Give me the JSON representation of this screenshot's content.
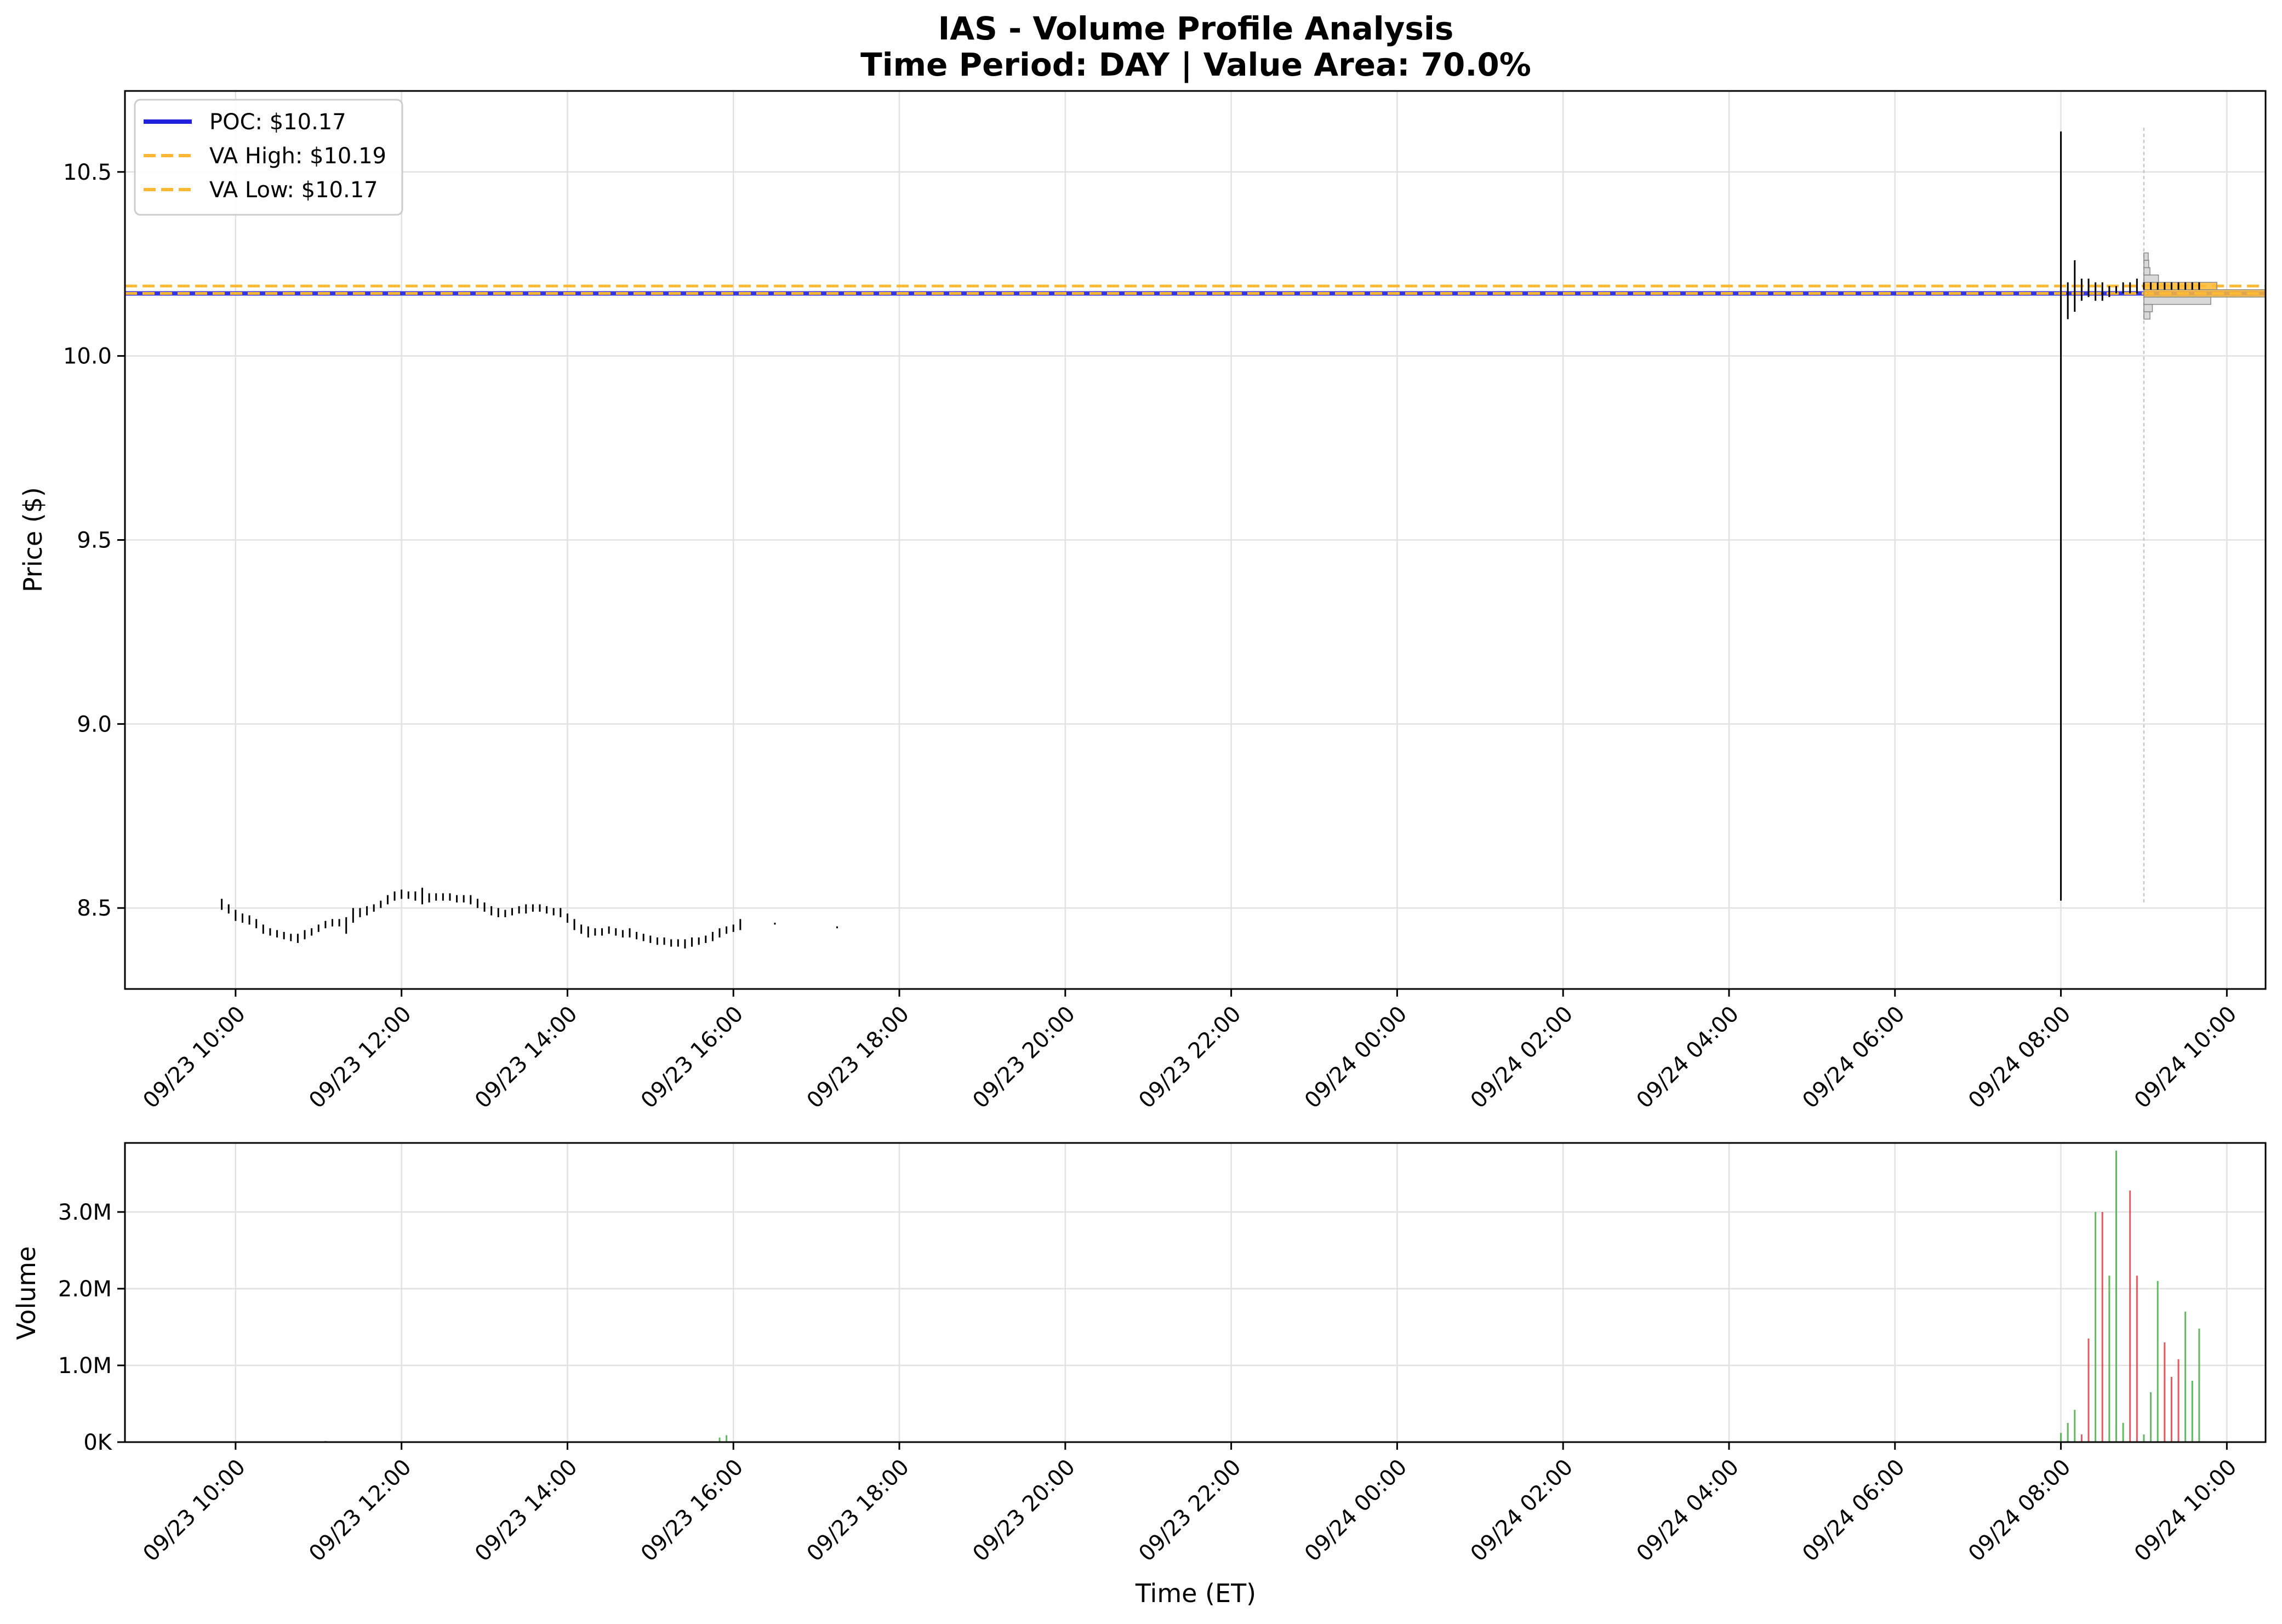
{
  "chart_data": [
    {
      "type": "candlestick",
      "title": "IAS - Volume Profile Analysis",
      "subtitle": "Time Period: DAY | Value Area: 70.0%",
      "xlabel": "",
      "ylabel": "Price ($)",
      "ylim": [
        8.28,
        10.72
      ],
      "yticks": [
        8.5,
        9.0,
        9.5,
        10.0,
        10.5
      ],
      "ytick_labels": [
        "8.5",
        "9.0",
        "9.5",
        "10.0",
        "10.5"
      ],
      "xlim": [
        "09/23 08:40",
        "09/24 10:28"
      ],
      "xticks": [
        "09/23 10:00",
        "09/23 12:00",
        "09/23 14:00",
        "09/23 16:00",
        "09/23 18:00",
        "09/23 20:00",
        "09/23 22:00",
        "09/24 00:00",
        "09/24 02:00",
        "09/24 04:00",
        "09/24 06:00",
        "09/24 08:00",
        "09/24 10:00"
      ],
      "xtick_labels": [
        "09/23 10:00",
        "09/23 12:00",
        "09/23 14:00",
        "09/23 16:00",
        "09/23 18:00",
        "09/23 20:00",
        "09/23 22:00",
        "09/24 00:00",
        "09/24 02:00",
        "09/24 04:00",
        "09/24 06:00",
        "09/24 08:00",
        "09/24 10:00"
      ],
      "grid": true,
      "legend": {
        "position": "top-left",
        "entries": [
          {
            "label": "POC: $10.17",
            "color": "#2222dd",
            "style": "solid"
          },
          {
            "label": "VA High: $10.19",
            "color": "#ffb833",
            "style": "dashed"
          },
          {
            "label": "VA Low: $10.17",
            "color": "#ffb833",
            "style": "dashed"
          }
        ]
      },
      "lines": {
        "poc": {
          "price": 10.17,
          "color": "#2222dd"
        },
        "va_high": {
          "price": 10.19,
          "color": "#ffb833"
        },
        "va_low": {
          "price": 10.17,
          "color": "#ffb833"
        }
      },
      "candles": [
        {
          "t": "09/23 09:50",
          "low": 8.495,
          "high": 8.525
        },
        {
          "t": "09/23 09:55",
          "low": 8.485,
          "high": 8.51
        },
        {
          "t": "09/23 10:00",
          "low": 8.465,
          "high": 8.495
        },
        {
          "t": "09/23 10:05",
          "low": 8.46,
          "high": 8.485
        },
        {
          "t": "09/23 10:10",
          "low": 8.455,
          "high": 8.48
        },
        {
          "t": "09/23 10:15",
          "low": 8.445,
          "high": 8.47
        },
        {
          "t": "09/23 10:20",
          "low": 8.43,
          "high": 8.455
        },
        {
          "t": "09/23 10:25",
          "low": 8.425,
          "high": 8.445
        },
        {
          "t": "09/23 10:30",
          "low": 8.42,
          "high": 8.44
        },
        {
          "t": "09/23 10:35",
          "low": 8.415,
          "high": 8.435
        },
        {
          "t": "09/23 10:40",
          "low": 8.41,
          "high": 8.43
        },
        {
          "t": "09/23 10:45",
          "low": 8.405,
          "high": 8.43
        },
        {
          "t": "09/23 10:50",
          "low": 8.415,
          "high": 8.44
        },
        {
          "t": "09/23 10:55",
          "low": 8.425,
          "high": 8.445
        },
        {
          "t": "09/23 11:00",
          "low": 8.435,
          "high": 8.455
        },
        {
          "t": "09/23 11:05",
          "low": 8.445,
          "high": 8.465
        },
        {
          "t": "09/23 11:10",
          "low": 8.45,
          "high": 8.47
        },
        {
          "t": "09/23 11:15",
          "low": 8.45,
          "high": 8.47
        },
        {
          "t": "09/23 11:20",
          "low": 8.43,
          "high": 8.475
        },
        {
          "t": "09/23 11:25",
          "low": 8.46,
          "high": 8.5
        },
        {
          "t": "09/23 11:30",
          "low": 8.475,
          "high": 8.5
        },
        {
          "t": "09/23 11:35",
          "low": 8.48,
          "high": 8.505
        },
        {
          "t": "09/23 11:40",
          "low": 8.49,
          "high": 8.51
        },
        {
          "t": "09/23 11:45",
          "low": 8.5,
          "high": 8.52
        },
        {
          "t": "09/23 11:50",
          "low": 8.51,
          "high": 8.535
        },
        {
          "t": "09/23 11:55",
          "low": 8.52,
          "high": 8.545
        },
        {
          "t": "09/23 12:00",
          "low": 8.525,
          "high": 8.55
        },
        {
          "t": "09/23 12:05",
          "low": 8.525,
          "high": 8.545
        },
        {
          "t": "09/23 12:10",
          "low": 8.52,
          "high": 8.545
        },
        {
          "t": "09/23 12:15",
          "low": 8.51,
          "high": 8.555
        },
        {
          "t": "09/23 12:20",
          "low": 8.515,
          "high": 8.54
        },
        {
          "t": "09/23 12:25",
          "low": 8.52,
          "high": 8.54
        },
        {
          "t": "09/23 12:30",
          "low": 8.52,
          "high": 8.54
        },
        {
          "t": "09/23 12:35",
          "low": 8.52,
          "high": 8.54
        },
        {
          "t": "09/23 12:40",
          "low": 8.515,
          "high": 8.535
        },
        {
          "t": "09/23 12:45",
          "low": 8.515,
          "high": 8.535
        },
        {
          "t": "09/23 12:50",
          "low": 8.51,
          "high": 8.535
        },
        {
          "t": "09/23 12:55",
          "low": 8.5,
          "high": 8.525
        },
        {
          "t": "09/23 13:00",
          "low": 8.49,
          "high": 8.515
        },
        {
          "t": "09/23 13:05",
          "low": 8.48,
          "high": 8.505
        },
        {
          "t": "09/23 13:10",
          "low": 8.475,
          "high": 8.5
        },
        {
          "t": "09/23 13:15",
          "low": 8.475,
          "high": 8.495
        },
        {
          "t": "09/23 13:20",
          "low": 8.48,
          "high": 8.5
        },
        {
          "t": "09/23 13:25",
          "low": 8.485,
          "high": 8.505
        },
        {
          "t": "09/23 13:30",
          "low": 8.485,
          "high": 8.51
        },
        {
          "t": "09/23 13:35",
          "low": 8.49,
          "high": 8.51
        },
        {
          "t": "09/23 13:40",
          "low": 8.49,
          "high": 8.51
        },
        {
          "t": "09/23 13:45",
          "low": 8.485,
          "high": 8.505
        },
        {
          "t": "09/23 13:50",
          "low": 8.48,
          "high": 8.5
        },
        {
          "t": "09/23 13:55",
          "low": 8.475,
          "high": 8.5
        },
        {
          "t": "09/23 14:00",
          "low": 8.46,
          "high": 8.485
        },
        {
          "t": "09/23 14:05",
          "low": 8.44,
          "high": 8.47
        },
        {
          "t": "09/23 14:10",
          "low": 8.43,
          "high": 8.455
        },
        {
          "t": "09/23 14:15",
          "low": 8.42,
          "high": 8.45
        },
        {
          "t": "09/23 14:20",
          "low": 8.425,
          "high": 8.445
        },
        {
          "t": "09/23 14:25",
          "low": 8.425,
          "high": 8.445
        },
        {
          "t": "09/23 14:30",
          "low": 8.43,
          "high": 8.45
        },
        {
          "t": "09/23 14:35",
          "low": 8.425,
          "high": 8.445
        },
        {
          "t": "09/23 14:40",
          "low": 8.42,
          "high": 8.44
        },
        {
          "t": "09/23 14:45",
          "low": 8.42,
          "high": 8.445
        },
        {
          "t": "09/23 14:50",
          "low": 8.415,
          "high": 8.435
        },
        {
          "t": "09/23 14:55",
          "low": 8.41,
          "high": 8.43
        },
        {
          "t": "09/23 15:00",
          "low": 8.405,
          "high": 8.425
        },
        {
          "t": "09/23 15:05",
          "low": 8.4,
          "high": 8.42
        },
        {
          "t": "09/23 15:10",
          "low": 8.4,
          "high": 8.42
        },
        {
          "t": "09/23 15:15",
          "low": 8.395,
          "high": 8.415
        },
        {
          "t": "09/23 15:20",
          "low": 8.395,
          "high": 8.415
        },
        {
          "t": "09/23 15:25",
          "low": 8.39,
          "high": 8.415
        },
        {
          "t": "09/23 15:30",
          "low": 8.395,
          "high": 8.42
        },
        {
          "t": "09/23 15:35",
          "low": 8.4,
          "high": 8.42
        },
        {
          "t": "09/23 15:40",
          "low": 8.405,
          "high": 8.425
        },
        {
          "t": "09/23 15:45",
          "low": 8.41,
          "high": 8.435
        },
        {
          "t": "09/23 15:50",
          "low": 8.42,
          "high": 8.445
        },
        {
          "t": "09/23 15:55",
          "low": 8.43,
          "high": 8.45
        },
        {
          "t": "09/23 16:00",
          "low": 8.435,
          "high": 8.455
        },
        {
          "t": "09/23 16:05",
          "low": 8.44,
          "high": 8.47
        },
        {
          "t": "09/23 16:30",
          "low": 8.455,
          "high": 8.46
        },
        {
          "t": "09/23 17:15",
          "low": 8.445,
          "high": 8.45
        },
        {
          "t": "09/24 08:00",
          "low": 8.52,
          "high": 10.61
        },
        {
          "t": "09/24 08:05",
          "low": 10.1,
          "high": 10.2
        },
        {
          "t": "09/24 08:10",
          "low": 10.12,
          "high": 10.26
        },
        {
          "t": "09/24 08:15",
          "low": 10.15,
          "high": 10.21
        },
        {
          "t": "09/24 08:20",
          "low": 10.16,
          "high": 10.21
        },
        {
          "t": "09/24 08:25",
          "low": 10.15,
          "high": 10.2
        },
        {
          "t": "09/24 08:30",
          "low": 10.15,
          "high": 10.2
        },
        {
          "t": "09/24 08:35",
          "low": 10.16,
          "high": 10.19
        },
        {
          "t": "09/24 08:40",
          "low": 10.17,
          "high": 10.19
        },
        {
          "t": "09/24 08:45",
          "low": 10.17,
          "high": 10.2
        },
        {
          "t": "09/24 08:50",
          "low": 10.17,
          "high": 10.2
        },
        {
          "t": "09/24 08:55",
          "low": 10.17,
          "high": 10.21
        },
        {
          "t": "09/24 09:00",
          "low": 10.18,
          "high": 10.2
        },
        {
          "t": "09/24 09:05",
          "low": 10.18,
          "high": 10.2
        },
        {
          "t": "09/24 09:10",
          "low": 10.18,
          "high": 10.2
        },
        {
          "t": "09/24 09:15",
          "low": 10.18,
          "high": 10.2
        },
        {
          "t": "09/24 09:20",
          "low": 10.18,
          "high": 10.2
        },
        {
          "t": "09/24 09:25",
          "low": 10.18,
          "high": 10.2
        },
        {
          "t": "09/24 09:30",
          "low": 10.18,
          "high": 10.2
        },
        {
          "t": "09/24 09:35",
          "low": 10.18,
          "high": 10.2
        },
        {
          "t": "09/24 09:40",
          "low": 10.18,
          "high": 10.2
        }
      ],
      "volume_profile": {
        "anchor": "09/24 09:00",
        "price_low": 8.51,
        "price_high": 10.62,
        "bins": [
          {
            "lo": 10.1,
            "hi": 10.12,
            "volume": 0.05
          },
          {
            "lo": 10.12,
            "hi": 10.14,
            "volume": 0.07
          },
          {
            "lo": 10.14,
            "hi": 10.16,
            "volume": 0.55
          },
          {
            "lo": 10.16,
            "hi": 10.18,
            "volume": 1.0
          },
          {
            "lo": 10.18,
            "hi": 10.2,
            "volume": 0.6
          },
          {
            "lo": 10.2,
            "hi": 10.22,
            "volume": 0.12
          },
          {
            "lo": 10.22,
            "hi": 10.24,
            "volume": 0.05
          },
          {
            "lo": 10.24,
            "hi": 10.26,
            "volume": 0.04
          },
          {
            "lo": 10.26,
            "hi": 10.28,
            "volume": 0.03
          }
        ]
      }
    },
    {
      "type": "bar",
      "title": "",
      "xlabel": "Time (ET)",
      "ylabel": "Volume",
      "ylim": [
        0,
        3900000
      ],
      "yticks": [
        0,
        1000000,
        2000000,
        3000000
      ],
      "ytick_labels": [
        "0K",
        "1.0M",
        "2.0M",
        "3.0M"
      ],
      "xlim": [
        "09/23 08:40",
        "09/24 10:28"
      ],
      "xticks": [
        "09/23 10:00",
        "09/23 12:00",
        "09/23 14:00",
        "09/23 16:00",
        "09/23 18:00",
        "09/23 20:00",
        "09/23 22:00",
        "09/24 00:00",
        "09/24 02:00",
        "09/24 04:00",
        "09/24 06:00",
        "09/24 08:00",
        "09/24 10:00"
      ],
      "xtick_labels": [
        "09/23 10:00",
        "09/23 12:00",
        "09/23 14:00",
        "09/23 16:00",
        "09/23 18:00",
        "09/23 20:00",
        "09/23 22:00",
        "09/24 00:00",
        "09/24 02:00",
        "09/24 04:00",
        "09/24 06:00",
        "09/24 08:00",
        "09/24 10:00"
      ],
      "grid": true,
      "colors": {
        "up": "#3aa83a",
        "down": "#e0303a"
      },
      "bars": [
        {
          "t": "09/23 11:05",
          "value": 15000,
          "dir": "up"
        },
        {
          "t": "09/23 13:05",
          "value": 10000,
          "dir": "up"
        },
        {
          "t": "09/23 15:50",
          "value": 60000,
          "dir": "up"
        },
        {
          "t": "09/23 15:55",
          "value": 90000,
          "dir": "up"
        },
        {
          "t": "09/24 08:00",
          "value": 120000,
          "dir": "up"
        },
        {
          "t": "09/24 08:05",
          "value": 250000,
          "dir": "up"
        },
        {
          "t": "09/24 08:10",
          "value": 420000,
          "dir": "up"
        },
        {
          "t": "09/24 08:15",
          "value": 100000,
          "dir": "down"
        },
        {
          "t": "09/24 08:20",
          "value": 1350000,
          "dir": "down"
        },
        {
          "t": "09/24 08:25",
          "value": 3000000,
          "dir": "up"
        },
        {
          "t": "09/24 08:30",
          "value": 3000000,
          "dir": "down"
        },
        {
          "t": "09/24 08:35",
          "value": 2170000,
          "dir": "up"
        },
        {
          "t": "09/24 08:40",
          "value": 3800000,
          "dir": "up"
        },
        {
          "t": "09/24 08:45",
          "value": 250000,
          "dir": "up"
        },
        {
          "t": "09/24 08:50",
          "value": 3280000,
          "dir": "down"
        },
        {
          "t": "09/24 08:55",
          "value": 2170000,
          "dir": "down"
        },
        {
          "t": "09/24 09:00",
          "value": 100000,
          "dir": "up"
        },
        {
          "t": "09/24 09:05",
          "value": 650000,
          "dir": "up"
        },
        {
          "t": "09/24 09:10",
          "value": 2100000,
          "dir": "up"
        },
        {
          "t": "09/24 09:15",
          "value": 1300000,
          "dir": "down"
        },
        {
          "t": "09/24 09:20",
          "value": 850000,
          "dir": "down"
        },
        {
          "t": "09/24 09:25",
          "value": 1080000,
          "dir": "down"
        },
        {
          "t": "09/24 09:30",
          "value": 1700000,
          "dir": "up"
        },
        {
          "t": "09/24 09:35",
          "value": 800000,
          "dir": "up"
        },
        {
          "t": "09/24 09:40",
          "value": 1480000,
          "dir": "up"
        }
      ]
    }
  ]
}
